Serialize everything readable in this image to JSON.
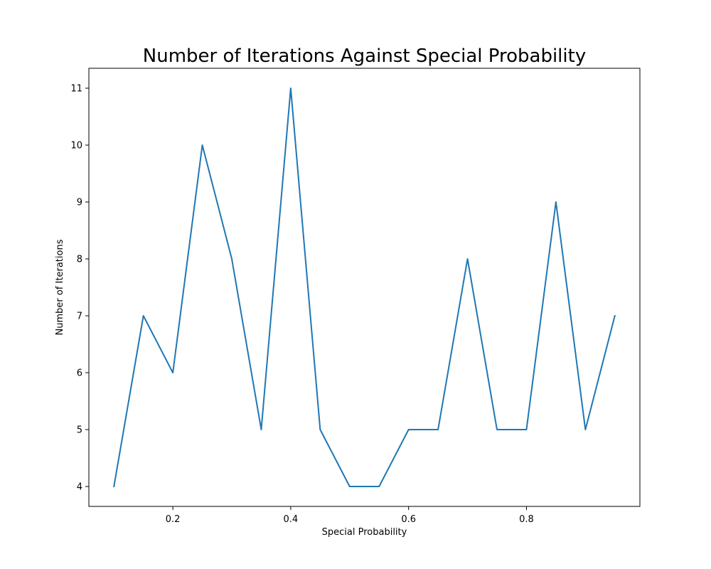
{
  "chart_data": {
    "type": "line",
    "title": "Number of Iterations Against Special Probability",
    "xlabel": "Special Probability",
    "ylabel": "Number of Iterations",
    "xlim": [
      0.0575,
      0.9925
    ],
    "ylim": [
      3.65,
      11.35
    ],
    "x_ticks": [
      0.2,
      0.4,
      0.6,
      0.8
    ],
    "x_tick_labels": [
      "0.2",
      "0.4",
      "0.6",
      "0.8"
    ],
    "y_ticks": [
      4,
      5,
      6,
      7,
      8,
      9,
      10,
      11
    ],
    "y_tick_labels": [
      "4",
      "5",
      "6",
      "7",
      "8",
      "9",
      "10",
      "11"
    ],
    "grid": false,
    "series": [
      {
        "color": "#1f77b4",
        "x": [
          0.1,
          0.15,
          0.2,
          0.25,
          0.3,
          0.35,
          0.4,
          0.45,
          0.5,
          0.55,
          0.6,
          0.65,
          0.7,
          0.75,
          0.8,
          0.85,
          0.9,
          0.95
        ],
        "y": [
          4,
          7,
          6,
          10,
          8,
          5,
          11,
          5,
          4,
          4,
          5,
          5,
          8,
          5,
          5,
          9,
          5,
          7
        ]
      }
    ]
  }
}
